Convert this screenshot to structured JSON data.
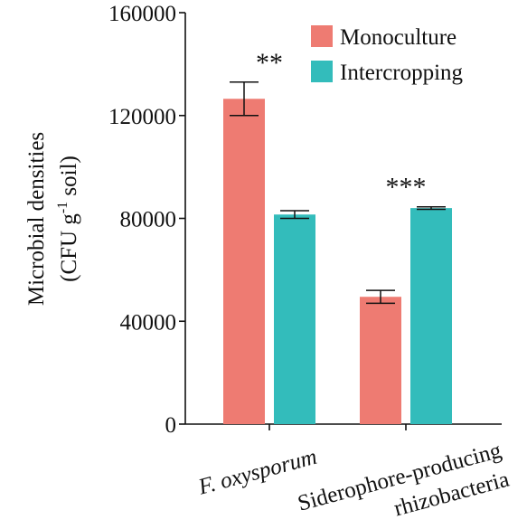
{
  "chart_data": {
    "type": "bar",
    "categories": [
      {
        "lines": [
          "F. oxysporum"
        ],
        "italic": true
      },
      {
        "lines": [
          "Siderophore-producing",
          "rhizobacteria"
        ],
        "italic": false
      }
    ],
    "series": [
      {
        "name": "Monoculture",
        "color": "#ee7b72",
        "values": [
          126500,
          49500
        ],
        "errors": [
          6500,
          2500
        ]
      },
      {
        "name": "Intercropping",
        "color": "#33bcbb",
        "values": [
          81500,
          84000
        ],
        "errors": [
          1500,
          500
        ]
      }
    ],
    "significance": [
      "**",
      "***"
    ],
    "ylabel": {
      "line1": "Microbial densities",
      "line2": {
        "pre": "(CFU g",
        "sup": "-1",
        "post": " soil)"
      }
    },
    "ylim": [
      0,
      160000
    ],
    "yticks": [
      0,
      40000,
      80000,
      120000,
      160000
    ],
    "grid": false,
    "legend_position": "top-right"
  }
}
